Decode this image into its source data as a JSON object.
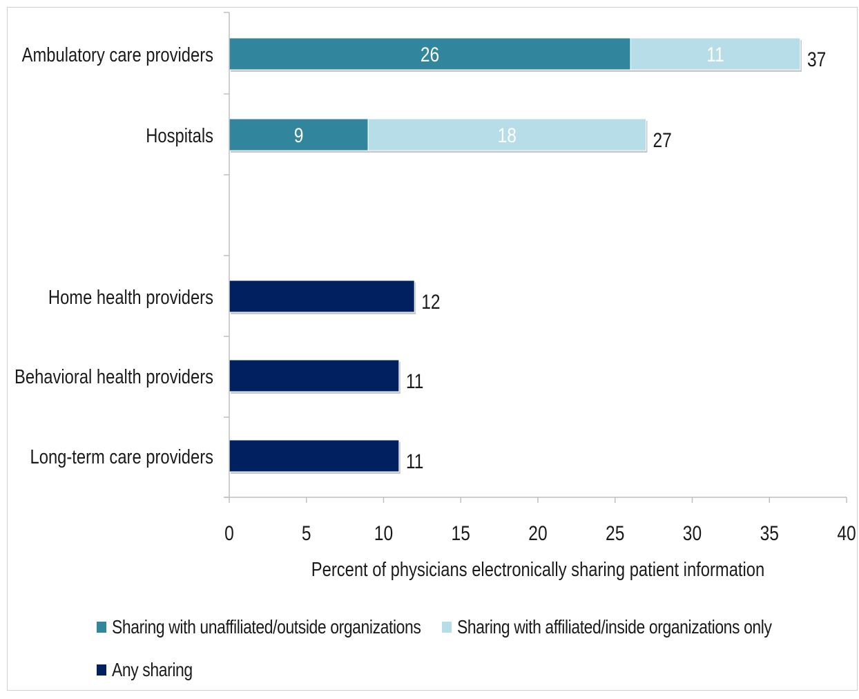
{
  "chart_data": {
    "type": "bar",
    "orientation": "horizontal",
    "stacked": true,
    "categories": [
      "Ambulatory care providers",
      "Hospitals",
      "Home health providers",
      "Behavioral health providers",
      "Long-term care providers"
    ],
    "series": [
      {
        "name": "Sharing with unaffiliated/outside organizations",
        "color": "#31859c",
        "values": [
          26,
          9,
          null,
          null,
          null
        ]
      },
      {
        "name": "Sharing with affiliated/inside organizations only",
        "color": "#b7dde8",
        "values": [
          11,
          18,
          null,
          null,
          null
        ]
      },
      {
        "name": "Any sharing",
        "color": "#002060",
        "values": [
          null,
          null,
          12,
          11,
          11
        ]
      }
    ],
    "totals": [
      37,
      27,
      12,
      11,
      11
    ],
    "xlabel": "Percent of physicians electronically sharing patient information",
    "ylabel": "",
    "xlim": [
      0,
      40
    ],
    "xticks": [
      0,
      5,
      10,
      15,
      20,
      25,
      30,
      35,
      40
    ],
    "grid": false,
    "legend_position": "bottom"
  }
}
